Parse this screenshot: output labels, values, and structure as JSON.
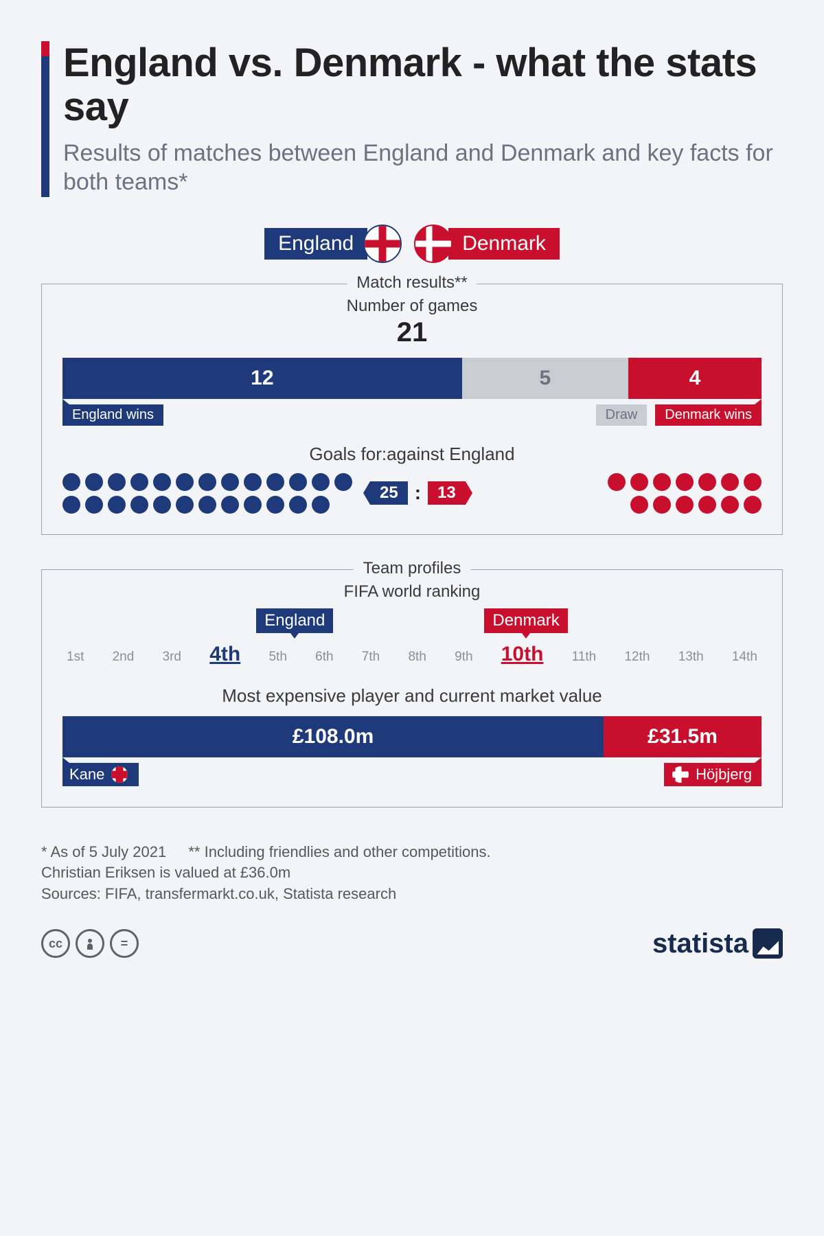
{
  "colors": {
    "blue": "#1e3a7b",
    "red": "#c8102e",
    "grey": "#c9ccd1",
    "bg": "#f2f4f7",
    "muted": "#6b7280"
  },
  "header": {
    "title": "England vs. Denmark - what the stats say",
    "subtitle": "Results of matches between England and Denmark and key facts for both teams*"
  },
  "teams": {
    "england": "England",
    "denmark": "Denmark"
  },
  "match": {
    "panel_title": "Match results**",
    "sub": "Number of games",
    "total": "21",
    "segments": [
      {
        "label": "England wins",
        "value": 12,
        "color": "#1e3a7b",
        "text": "#ffffff"
      },
      {
        "label": "Draw",
        "value": 5,
        "color": "#c9ccd1",
        "text": "#6b7280"
      },
      {
        "label": "Denmark wins",
        "value": 4,
        "color": "#c8102e",
        "text": "#ffffff"
      }
    ],
    "goals_title": "Goals for:against England",
    "goals_for": 25,
    "goals_against": 13
  },
  "profiles": {
    "panel_title": "Team profiles",
    "sub": "FIFA world ranking",
    "ranks": [
      "1st",
      "2nd",
      "3rd",
      "4th",
      "5th",
      "6th",
      "7th",
      "8th",
      "9th",
      "10th",
      "11th",
      "12th",
      "13th",
      "14th"
    ],
    "england_rank_index": 3,
    "denmark_rank_index": 9,
    "mv_title": "Most expensive player and current market value",
    "mv": [
      {
        "player": "Kane",
        "value": "£108.0m",
        "amount": 108.0,
        "color": "#1e3a7b"
      },
      {
        "player": "Höjbjerg",
        "value": "£31.5m",
        "amount": 31.5,
        "color": "#c8102e"
      }
    ]
  },
  "footnotes": {
    "a": "* As of 5 July 2021",
    "b": "** Including friendlies and other competitions.",
    "c": "Christian Eriksen is valued at £36.0m",
    "sources": "Sources: FIFA, transfermarkt.co.uk, Statista research"
  },
  "footer": {
    "brand": "statista"
  }
}
